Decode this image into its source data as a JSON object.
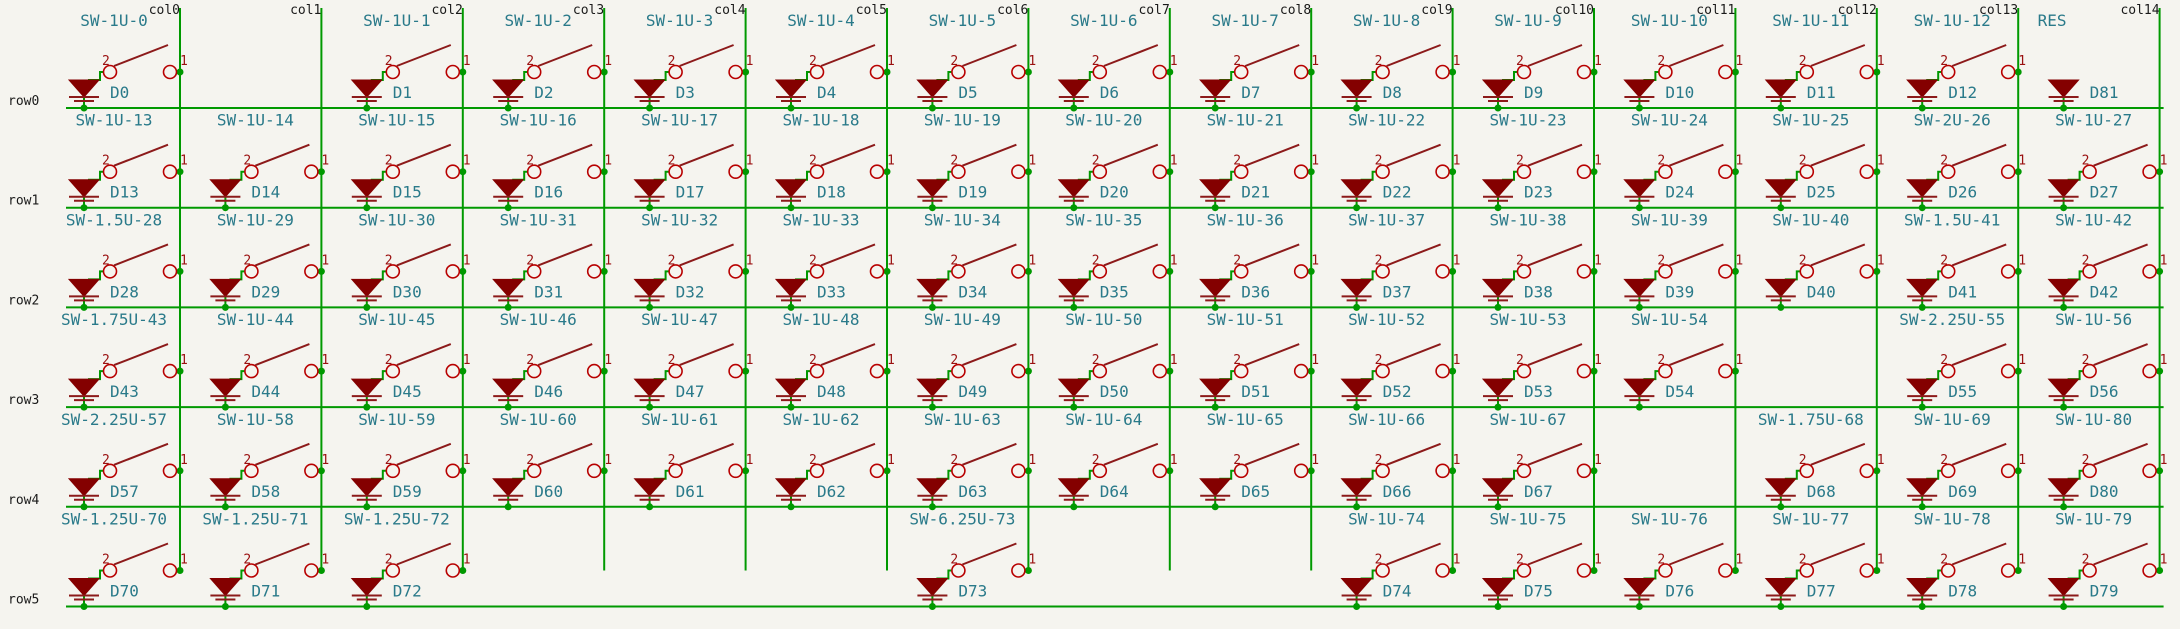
{
  "schematic": {
    "columns": [
      "col0",
      "col1",
      "col2",
      "col3",
      "col4",
      "col5",
      "col6",
      "col7",
      "col8",
      "col9",
      "col10",
      "col11",
      "col12",
      "col13",
      "col14"
    ],
    "rows": [
      "row0",
      "row1",
      "row2",
      "row3",
      "row4",
      "row5"
    ],
    "pin_labels": {
      "a": "2",
      "b": "1"
    },
    "colors": {
      "wire": "#009900",
      "symbol": "#840000",
      "reference": "#2a7a8a",
      "background": "#f5f4ef"
    },
    "components": [
      {
        "row": 0,
        "col": 0,
        "switch": "SW-1U-0",
        "diode": "D0"
      },
      {
        "row": 0,
        "col": 2,
        "switch": "SW-1U-1",
        "diode": "D1"
      },
      {
        "row": 0,
        "col": 3,
        "switch": "SW-1U-2",
        "diode": "D2"
      },
      {
        "row": 0,
        "col": 4,
        "switch": "SW-1U-3",
        "diode": "D3"
      },
      {
        "row": 0,
        "col": 5,
        "switch": "SW-1U-4",
        "diode": "D4"
      },
      {
        "row": 0,
        "col": 6,
        "switch": "SW-1U-5",
        "diode": "D5"
      },
      {
        "row": 0,
        "col": 7,
        "switch": "SW-1U-6",
        "diode": "D6"
      },
      {
        "row": 0,
        "col": 8,
        "switch": "SW-1U-7",
        "diode": "D7"
      },
      {
        "row": 0,
        "col": 9,
        "switch": "SW-1U-8",
        "diode": "D8"
      },
      {
        "row": 0,
        "col": 10,
        "switch": "SW-1U-9",
        "diode": "D9"
      },
      {
        "row": 0,
        "col": 11,
        "switch": "SW-1U-10",
        "diode": "D10"
      },
      {
        "row": 0,
        "col": 12,
        "switch": "SW-1U-11",
        "diode": "D11"
      },
      {
        "row": 0,
        "col": 13,
        "switch": "SW-1U-12",
        "diode": "D12"
      },
      {
        "row": 0,
        "col": 14,
        "switch": "RES",
        "diode": "D81",
        "diode_only": true
      },
      {
        "row": 1,
        "col": 0,
        "switch": "SW-1U-13",
        "diode": "D13"
      },
      {
        "row": 1,
        "col": 1,
        "switch": "SW-1U-14",
        "diode": "D14"
      },
      {
        "row": 1,
        "col": 2,
        "switch": "SW-1U-15",
        "diode": "D15"
      },
      {
        "row": 1,
        "col": 3,
        "switch": "SW-1U-16",
        "diode": "D16"
      },
      {
        "row": 1,
        "col": 4,
        "switch": "SW-1U-17",
        "diode": "D17"
      },
      {
        "row": 1,
        "col": 5,
        "switch": "SW-1U-18",
        "diode": "D18"
      },
      {
        "row": 1,
        "col": 6,
        "switch": "SW-1U-19",
        "diode": "D19"
      },
      {
        "row": 1,
        "col": 7,
        "switch": "SW-1U-20",
        "diode": "D20"
      },
      {
        "row": 1,
        "col": 8,
        "switch": "SW-1U-21",
        "diode": "D21"
      },
      {
        "row": 1,
        "col": 9,
        "switch": "SW-1U-22",
        "diode": "D22"
      },
      {
        "row": 1,
        "col": 10,
        "switch": "SW-1U-23",
        "diode": "D23"
      },
      {
        "row": 1,
        "col": 11,
        "switch": "SW-1U-24",
        "diode": "D24"
      },
      {
        "row": 1,
        "col": 12,
        "switch": "SW-1U-25",
        "diode": "D25"
      },
      {
        "row": 1,
        "col": 13,
        "switch": "SW-2U-26",
        "diode": "D26"
      },
      {
        "row": 1,
        "col": 14,
        "switch": "SW-1U-27",
        "diode": "D27"
      },
      {
        "row": 2,
        "col": 0,
        "switch": "SW-1.5U-28",
        "diode": "D28"
      },
      {
        "row": 2,
        "col": 1,
        "switch": "SW-1U-29",
        "diode": "D29"
      },
      {
        "row": 2,
        "col": 2,
        "switch": "SW-1U-30",
        "diode": "D30"
      },
      {
        "row": 2,
        "col": 3,
        "switch": "SW-1U-31",
        "diode": "D31"
      },
      {
        "row": 2,
        "col": 4,
        "switch": "SW-1U-32",
        "diode": "D32"
      },
      {
        "row": 2,
        "col": 5,
        "switch": "SW-1U-33",
        "diode": "D33"
      },
      {
        "row": 2,
        "col": 6,
        "switch": "SW-1U-34",
        "diode": "D34"
      },
      {
        "row": 2,
        "col": 7,
        "switch": "SW-1U-35",
        "diode": "D35"
      },
      {
        "row": 2,
        "col": 8,
        "switch": "SW-1U-36",
        "diode": "D36"
      },
      {
        "row": 2,
        "col": 9,
        "switch": "SW-1U-37",
        "diode": "D37"
      },
      {
        "row": 2,
        "col": 10,
        "switch": "SW-1U-38",
        "diode": "D38"
      },
      {
        "row": 2,
        "col": 11,
        "switch": "SW-1U-39",
        "diode": "D39"
      },
      {
        "row": 2,
        "col": 12,
        "switch": "SW-1U-40",
        "diode": "D40"
      },
      {
        "row": 2,
        "col": 13,
        "switch": "SW-1.5U-41",
        "diode": "D41"
      },
      {
        "row": 2,
        "col": 14,
        "switch": "SW-1U-42",
        "diode": "D42"
      },
      {
        "row": 3,
        "col": 0,
        "switch": "SW-1.75U-43",
        "diode": "D43"
      },
      {
        "row": 3,
        "col": 1,
        "switch": "SW-1U-44",
        "diode": "D44"
      },
      {
        "row": 3,
        "col": 2,
        "switch": "SW-1U-45",
        "diode": "D45"
      },
      {
        "row": 3,
        "col": 3,
        "switch": "SW-1U-46",
        "diode": "D46"
      },
      {
        "row": 3,
        "col": 4,
        "switch": "SW-1U-47",
        "diode": "D47"
      },
      {
        "row": 3,
        "col": 5,
        "switch": "SW-1U-48",
        "diode": "D48"
      },
      {
        "row": 3,
        "col": 6,
        "switch": "SW-1U-49",
        "diode": "D49"
      },
      {
        "row": 3,
        "col": 7,
        "switch": "SW-1U-50",
        "diode": "D50"
      },
      {
        "row": 3,
        "col": 8,
        "switch": "SW-1U-51",
        "diode": "D51"
      },
      {
        "row": 3,
        "col": 9,
        "switch": "SW-1U-52",
        "diode": "D52"
      },
      {
        "row": 3,
        "col": 10,
        "switch": "SW-1U-53",
        "diode": "D53"
      },
      {
        "row": 3,
        "col": 11,
        "switch": "SW-1U-54",
        "diode": "D54"
      },
      {
        "row": 3,
        "col": 13,
        "switch": "SW-2.25U-55",
        "diode": "D55"
      },
      {
        "row": 3,
        "col": 14,
        "switch": "SW-1U-56",
        "diode": "D56"
      },
      {
        "row": 4,
        "col": 0,
        "switch": "SW-2.25U-57",
        "diode": "D57"
      },
      {
        "row": 4,
        "col": 1,
        "switch": "SW-1U-58",
        "diode": "D58"
      },
      {
        "row": 4,
        "col": 2,
        "switch": "SW-1U-59",
        "diode": "D59"
      },
      {
        "row": 4,
        "col": 3,
        "switch": "SW-1U-60",
        "diode": "D60"
      },
      {
        "row": 4,
        "col": 4,
        "switch": "SW-1U-61",
        "diode": "D61"
      },
      {
        "row": 4,
        "col": 5,
        "switch": "SW-1U-62",
        "diode": "D62"
      },
      {
        "row": 4,
        "col": 6,
        "switch": "SW-1U-63",
        "diode": "D63"
      },
      {
        "row": 4,
        "col": 7,
        "switch": "SW-1U-64",
        "diode": "D64"
      },
      {
        "row": 4,
        "col": 8,
        "switch": "SW-1U-65",
        "diode": "D65"
      },
      {
        "row": 4,
        "col": 9,
        "switch": "SW-1U-66",
        "diode": "D66"
      },
      {
        "row": 4,
        "col": 10,
        "switch": "SW-1U-67",
        "diode": "D67"
      },
      {
        "row": 4,
        "col": 12,
        "switch": "SW-1.75U-68",
        "diode": "D68"
      },
      {
        "row": 4,
        "col": 13,
        "switch": "SW-1U-69",
        "diode": "D69"
      },
      {
        "row": 4,
        "col": 14,
        "switch": "SW-1U-80",
        "diode": "D80"
      },
      {
        "row": 5,
        "col": 0,
        "switch": "SW-1.25U-70",
        "diode": "D70"
      },
      {
        "row": 5,
        "col": 1,
        "switch": "SW-1.25U-71",
        "diode": "D71"
      },
      {
        "row": 5,
        "col": 2,
        "switch": "SW-1.25U-72",
        "diode": "D72"
      },
      {
        "row": 5,
        "col": 6,
        "switch": "SW-6.25U-73",
        "diode": "D73"
      },
      {
        "row": 5,
        "col": 9,
        "switch": "SW-1U-74",
        "diode": "D74"
      },
      {
        "row": 5,
        "col": 10,
        "switch": "SW-1U-75",
        "diode": "D75"
      },
      {
        "row": 5,
        "col": 11,
        "switch": "SW-1U-76",
        "diode": "D76"
      },
      {
        "row": 5,
        "col": 12,
        "switch": "SW-1U-77",
        "diode": "D77"
      },
      {
        "row": 5,
        "col": 13,
        "switch": "SW-1U-78",
        "diode": "D78"
      },
      {
        "row": 5,
        "col": 14,
        "switch": "SW-1U-79",
        "diode": "D79"
      }
    ]
  }
}
